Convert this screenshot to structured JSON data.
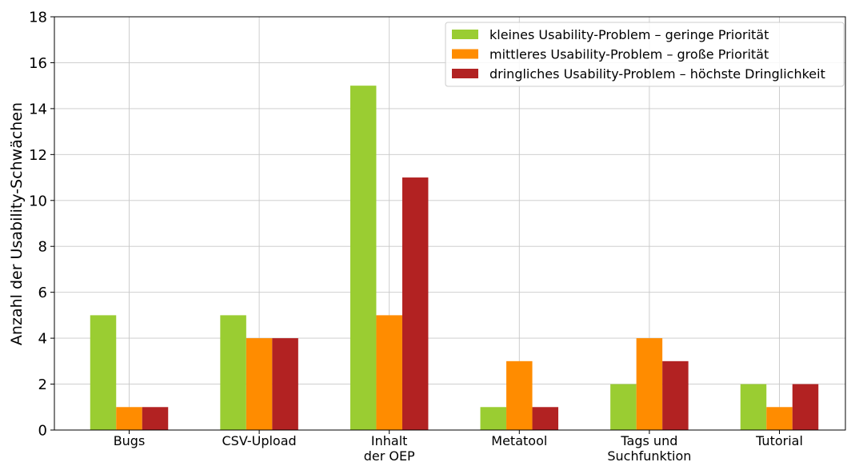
{
  "chart_data": {
    "type": "bar",
    "categories": [
      "Bugs",
      "CSV-Upload",
      "Inhalt\nder OEP",
      "Metatool",
      "Tags und\nSuchfunktion",
      "Tutorial"
    ],
    "series": [
      {
        "name": "kleines Usability-Problem – geringe Priorität",
        "color": "#9acd32",
        "values": [
          5,
          5,
          15,
          1,
          2,
          2
        ]
      },
      {
        "name": "mittleres Usability-Problem – große Priorität",
        "color": "#ff8c00",
        "values": [
          1,
          4,
          5,
          3,
          4,
          1
        ]
      },
      {
        "name": "dringliches Usability-Problem – höchste Dringlichkeit",
        "color": "#b22222",
        "values": [
          1,
          4,
          11,
          1,
          3,
          2
        ]
      }
    ],
    "xlabel": "",
    "ylabel": "Anzahl der Usability-Schwächen",
    "ylim": [
      0,
      18
    ],
    "yticks": [
      0,
      2,
      4,
      6,
      8,
      10,
      12,
      14,
      16,
      18
    ],
    "grid": true,
    "legend_position": "top-right"
  }
}
